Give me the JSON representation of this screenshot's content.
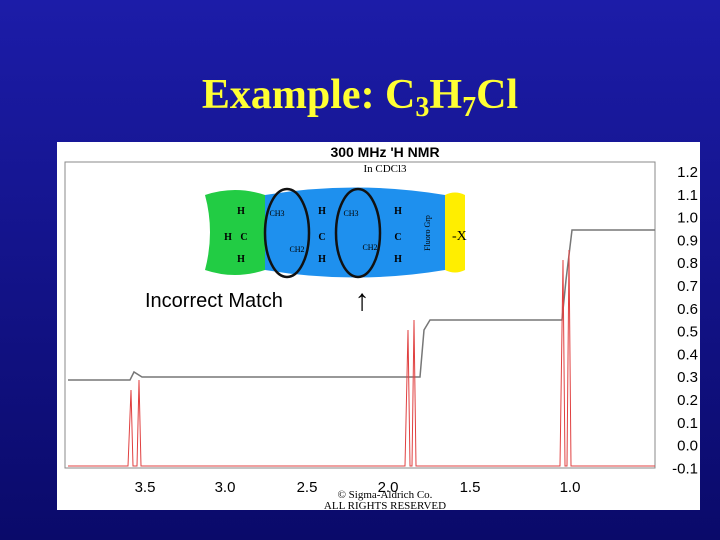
{
  "slide": {
    "title": {
      "text": "Example: C",
      "sub1": "3",
      "mid": "H",
      "sub2": "7",
      "end": "Cl"
    },
    "spectrum": {
      "heading": "300 MHz 'H NMR",
      "solvent": "In CDCl3",
      "x_ticks": [
        "3.5",
        "3.0",
        "2.5",
        "2.0",
        "1.5",
        "1.0"
      ],
      "y_ticks": [
        "1.2",
        "1.1",
        "1.0",
        "0.9",
        "0.8",
        "0.7",
        "0.6",
        "0.5",
        "0.4",
        "0.3",
        "0.2",
        "0.1",
        "0.0",
        "-0.1"
      ],
      "copyright": "© Sigma-Aldrich Co.",
      "rights": "ALL RIGHTS RESERVED"
    },
    "molecule": {
      "h": "H",
      "c": "C",
      "ch3": "CH3",
      "ch2": "CH2",
      "group": "Fluoro Grp",
      "x": "-X"
    },
    "annotation": "Incorrect Match",
    "arrow": "↑"
  }
}
